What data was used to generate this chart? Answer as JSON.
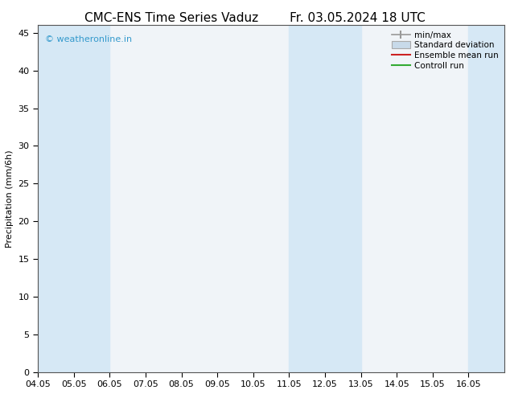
{
  "title_left": "CMC-ENS Time Series Vaduz",
  "title_right": "Fr. 03.05.2024 18 UTC",
  "ylabel": "Precipitation (mm/6h)",
  "xlim": [
    0,
    13
  ],
  "ylim": [
    0,
    46
  ],
  "yticks": [
    0,
    5,
    10,
    15,
    20,
    25,
    30,
    35,
    40,
    45
  ],
  "xtick_labels": [
    "04.05",
    "05.05",
    "06.05",
    "07.05",
    "08.05",
    "09.05",
    "10.05",
    "11.05",
    "12.05",
    "13.05",
    "14.05",
    "15.05",
    "16.05"
  ],
  "watermark": "© weatheronline.in",
  "watermark_color": "#3399cc",
  "background_color": "#ffffff",
  "plot_bg_color": "#f0f4f8",
  "band_color": "#d6e8f5",
  "band_ranges": [
    [
      0,
      2
    ],
    [
      7,
      9
    ],
    [
      12,
      13
    ]
  ],
  "legend_entries": [
    {
      "label": "min/max",
      "color": "#aaaaaa",
      "style": "minmax"
    },
    {
      "label": "Standard deviation",
      "color": "#bbccdd",
      "style": "stddev"
    },
    {
      "label": "Ensemble mean run",
      "color": "#cc2222",
      "style": "line"
    },
    {
      "label": "Controll run",
      "color": "#33aa33",
      "style": "line"
    }
  ],
  "title_fontsize": 11,
  "axis_fontsize": 8,
  "tick_fontsize": 8,
  "legend_fontsize": 7.5
}
